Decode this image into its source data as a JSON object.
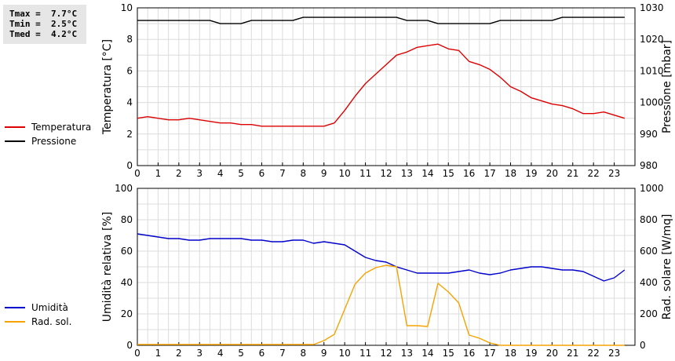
{
  "stats": {
    "line1": "Tmax =  7.7°C",
    "line2": "Tmin =  2.5°C",
    "line3": "Tmed =  4.2°C"
  },
  "legend_top": [
    {
      "label": "Temperatura",
      "color": "#dd0000"
    },
    {
      "label": "Pressione",
      "color": "#000000"
    }
  ],
  "legend_bottom": [
    {
      "label": "Umidità",
      "color": "#0000cc"
    },
    {
      "label": "Rad. sol.",
      "color": "#f5a300"
    }
  ],
  "chart_data": [
    {
      "type": "line",
      "ylabel": "Temperatura [°C]",
      "y2label": "Pressione [mbar]",
      "xlim": [
        0,
        24
      ],
      "ylim": [
        0,
        10
      ],
      "y2lim": [
        980,
        1030
      ],
      "xticks": [
        "0",
        "1",
        "2",
        "3",
        "4",
        "5",
        "6",
        "7",
        "8",
        "9",
        "10",
        "11",
        "12",
        "13",
        "14",
        "15",
        "16",
        "17",
        "18",
        "19",
        "20",
        "21",
        "22",
        "23"
      ],
      "yticks": [
        "0",
        "2",
        "4",
        "6",
        "8",
        "10"
      ],
      "y2ticks": [
        "980",
        "990",
        "1000",
        "1010",
        "1020",
        "1030"
      ],
      "grid": true,
      "series": [
        {
          "name": "Temperatura",
          "axis": "left",
          "color": "#dd0000",
          "x": [
            0,
            0.5,
            1,
            1.5,
            2,
            2.5,
            3,
            3.5,
            4,
            4.5,
            5,
            5.5,
            6,
            6.5,
            7,
            7.5,
            8,
            8.5,
            9,
            9.5,
            10,
            10.5,
            11,
            11.5,
            12,
            12.5,
            13,
            13.5,
            14,
            14.5,
            15,
            15.5,
            16,
            16.5,
            17,
            17.5,
            18,
            18.5,
            19,
            19.5,
            20,
            20.5,
            21,
            21.5,
            22,
            22.5,
            23,
            23.5
          ],
          "values": [
            3.0,
            3.1,
            3.0,
            2.9,
            2.9,
            3.0,
            2.9,
            2.8,
            2.7,
            2.7,
            2.6,
            2.6,
            2.5,
            2.5,
            2.5,
            2.5,
            2.5,
            2.5,
            2.5,
            2.7,
            3.5,
            4.4,
            5.2,
            5.8,
            6.4,
            7.0,
            7.2,
            7.5,
            7.6,
            7.7,
            7.4,
            7.3,
            6.6,
            6.4,
            6.1,
            5.6,
            5.0,
            4.7,
            4.3,
            4.1,
            3.9,
            3.8,
            3.6,
            3.3,
            3.3,
            3.4,
            3.2,
            3.0
          ]
        },
        {
          "name": "Pressione",
          "axis": "right",
          "color": "#000000",
          "x": [
            0,
            0.5,
            1,
            1.5,
            2,
            2.5,
            3,
            3.5,
            4,
            4.5,
            5,
            5.5,
            6,
            6.5,
            7,
            7.5,
            8,
            8.5,
            9,
            9.5,
            10,
            10.5,
            11,
            11.5,
            12,
            12.5,
            13,
            13.5,
            14,
            14.5,
            15,
            15.5,
            16,
            16.5,
            17,
            17.5,
            18,
            18.5,
            19,
            19.5,
            20,
            20.5,
            21,
            21.5,
            22,
            22.5,
            23,
            23.5
          ],
          "values": [
            1026,
            1026,
            1026,
            1026,
            1026,
            1026,
            1026,
            1026,
            1025,
            1025,
            1025,
            1026,
            1026,
            1026,
            1026,
            1026,
            1027,
            1027,
            1027,
            1027,
            1027,
            1027,
            1027,
            1027,
            1027,
            1027,
            1026,
            1026,
            1026,
            1025,
            1025,
            1025,
            1025,
            1025,
            1025,
            1026,
            1026,
            1026,
            1026,
            1026,
            1026,
            1027,
            1027,
            1027,
            1027,
            1027,
            1027,
            1027
          ]
        }
      ]
    },
    {
      "type": "line",
      "ylabel": "Umidità relativa [%]",
      "y2label": "Rad. solare [W/mq]",
      "xlim": [
        0,
        24
      ],
      "ylim": [
        0,
        100
      ],
      "y2lim": [
        0,
        1000
      ],
      "xticks": [
        "0",
        "1",
        "2",
        "3",
        "4",
        "5",
        "6",
        "7",
        "8",
        "9",
        "10",
        "11",
        "12",
        "13",
        "14",
        "15",
        "16",
        "17",
        "18",
        "19",
        "20",
        "21",
        "22",
        "23"
      ],
      "yticks": [
        "0",
        "20",
        "40",
        "60",
        "80",
        "100"
      ],
      "y2ticks": [
        "0",
        "200",
        "400",
        "600",
        "800",
        "1000"
      ],
      "grid": true,
      "series": [
        {
          "name": "Umidità",
          "axis": "left",
          "color": "#0000cc",
          "x": [
            0,
            0.5,
            1,
            1.5,
            2,
            2.5,
            3,
            3.5,
            4,
            4.5,
            5,
            5.5,
            6,
            6.5,
            7,
            7.5,
            8,
            8.5,
            9,
            9.5,
            10,
            10.5,
            11,
            11.5,
            12,
            12.5,
            13,
            13.5,
            14,
            14.5,
            15,
            15.5,
            16,
            16.5,
            17,
            17.5,
            18,
            18.5,
            19,
            19.5,
            20,
            20.5,
            21,
            21.5,
            22,
            22.5,
            23,
            23.5
          ],
          "values": [
            71,
            70,
            69,
            68,
            68,
            67,
            67,
            68,
            68,
            68,
            68,
            67,
            67,
            66,
            66,
            67,
            67,
            65,
            66,
            65,
            64,
            60,
            56,
            54,
            53,
            50,
            48,
            46,
            46,
            46,
            46,
            47,
            48,
            46,
            45,
            46,
            48,
            49,
            50,
            50,
            49,
            48,
            48,
            47,
            44,
            41,
            43,
            48
          ]
        },
        {
          "name": "Rad. sol.",
          "axis": "right",
          "color": "#f5a300",
          "x": [
            0,
            0.5,
            1,
            1.5,
            2,
            2.5,
            3,
            3.5,
            4,
            4.5,
            5,
            5.5,
            6,
            6.5,
            7,
            7.5,
            8,
            8.5,
            9,
            9.5,
            10,
            10.5,
            11,
            11.5,
            12,
            12.5,
            13,
            13.5,
            14,
            14.5,
            15,
            15.5,
            16,
            16.5,
            17,
            17.5,
            18,
            18.5,
            19,
            19.5,
            20,
            20.5,
            21,
            21.5,
            22,
            22.5,
            23,
            23.5
          ],
          "values": [
            5,
            5,
            5,
            5,
            5,
            5,
            5,
            5,
            5,
            5,
            5,
            5,
            5,
            5,
            5,
            5,
            5,
            5,
            30,
            70,
            230,
            390,
            460,
            495,
            510,
            500,
            125,
            125,
            120,
            395,
            340,
            270,
            65,
            45,
            15,
            0,
            0,
            0,
            0,
            0,
            0,
            0,
            0,
            0,
            0,
            0,
            0,
            0
          ]
        }
      ]
    }
  ]
}
